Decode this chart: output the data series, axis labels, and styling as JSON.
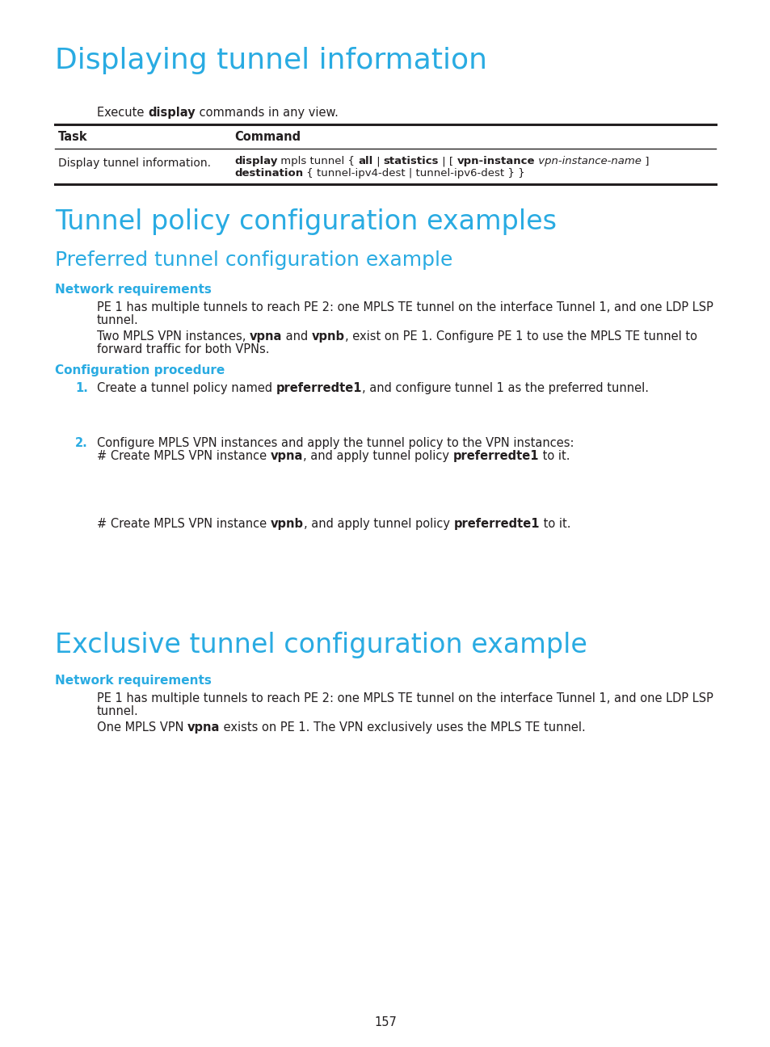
{
  "bg_color": "#ffffff",
  "cyan_color": "#29abe2",
  "black_color": "#231f20",
  "page_number": "157",
  "h1_displaying": "Displaying tunnel information",
  "h1_tunnel_policy": "Tunnel policy configuration examples",
  "h2_preferred": "Preferred tunnel configuration example",
  "h3_network_req1": "Network requirements",
  "h3_config_proc1": "Configuration procedure",
  "h1_exclusive": "Exclusive tunnel configuration example",
  "h3_network_req2": "Network requirements"
}
